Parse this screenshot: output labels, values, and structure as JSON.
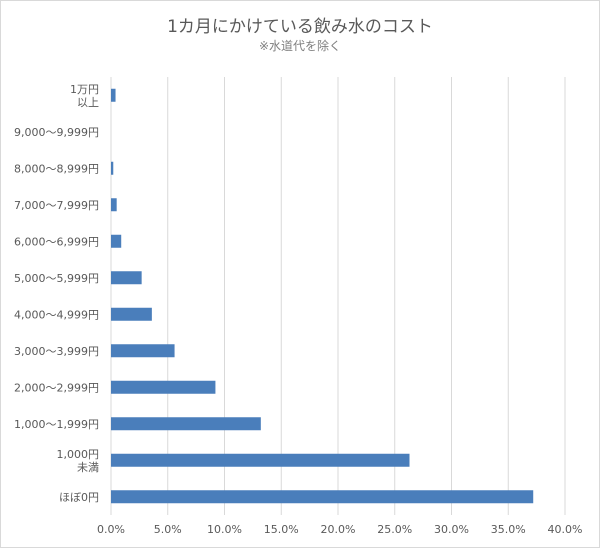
{
  "chart_data": {
    "type": "bar",
    "orientation": "horizontal",
    "title": "1カ月にかけている飲み水のコスト",
    "subtitle": "※水道代を除く",
    "categories": [
      [
        "1万円",
        "以上"
      ],
      [
        "9,000～9,999円"
      ],
      [
        "8,000～8,999円"
      ],
      [
        "7,000～7,999円"
      ],
      [
        "6,000～6,999円"
      ],
      [
        "5,000～5,999円"
      ],
      [
        "4,000～4,999円"
      ],
      [
        "3,000～3,999円"
      ],
      [
        "2,000～2,999円"
      ],
      [
        "1,000～1,999円"
      ],
      [
        "1,000円",
        "未満"
      ],
      [
        "ほぼ0円"
      ]
    ],
    "values": [
      0.4,
      0.0,
      0.2,
      0.5,
      0.9,
      2.7,
      3.6,
      5.6,
      9.2,
      13.2,
      26.3,
      37.2
    ],
    "xlim": [
      0,
      40
    ],
    "xticks": [
      "0.0%",
      "5.0%",
      "10.0%",
      "15.0%",
      "20.0%",
      "25.0%",
      "30.0%",
      "35.0%",
      "40.0%"
    ],
    "grid": true,
    "colors": {
      "bar": "#4a7ebb",
      "grid": "#d9d9d9",
      "text": "#595959"
    }
  }
}
